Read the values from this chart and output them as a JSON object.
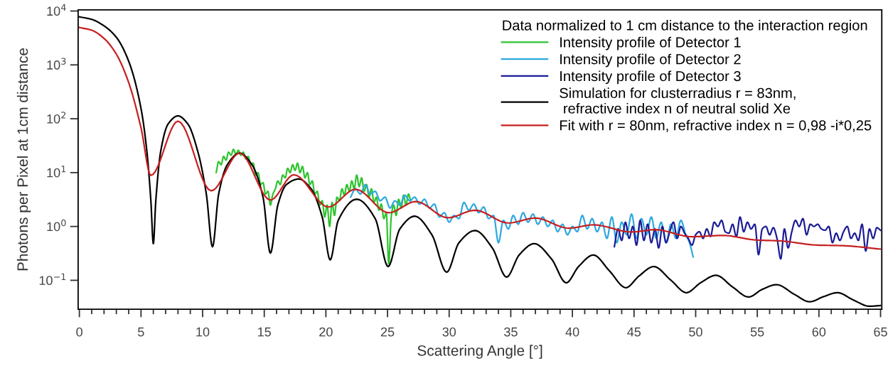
{
  "chart_data": {
    "type": "line",
    "xlabel": "Scattering Angle [°]",
    "ylabel": "Photons per Pixel at 1cm distance",
    "legend_title": "Data normalized to 1 cm distance to the interaction region",
    "log": "y",
    "legend": "top right",
    "grid": false,
    "marker": "none",
    "line_style": "solid",
    "xlim": [
      -0.1,
      65.1
    ],
    "ylim": [
      0.029,
      10500
    ],
    "xticks": [
      0,
      {
        "value": 1,
        "label": null
      },
      {
        "value": 2,
        "label": null
      },
      {
        "value": 3,
        "label": null
      },
      {
        "value": 4,
        "label": null
      },
      5,
      {
        "value": 6,
        "label": null
      },
      {
        "value": 7,
        "label": null
      },
      {
        "value": 8,
        "label": null
      },
      {
        "value": 9,
        "label": null
      },
      10,
      {
        "value": 11,
        "label": null
      },
      {
        "value": 12,
        "label": null
      },
      {
        "value": 13,
        "label": null
      },
      {
        "value": 14,
        "label": null
      },
      15,
      {
        "value": 16,
        "label": null
      },
      {
        "value": 17,
        "label": null
      },
      {
        "value": 18,
        "label": null
      },
      {
        "value": 19,
        "label": null
      },
      20,
      {
        "value": 21,
        "label": null
      },
      {
        "value": 22,
        "label": null
      },
      {
        "value": 23,
        "label": null
      },
      {
        "value": 24,
        "label": null
      },
      25,
      {
        "value": 26,
        "label": null
      },
      {
        "value": 27,
        "label": null
      },
      {
        "value": 28,
        "label": null
      },
      {
        "value": 29,
        "label": null
      },
      30,
      {
        "value": 31,
        "label": null
      },
      {
        "value": 32,
        "label": null
      },
      {
        "value": 33,
        "label": null
      },
      {
        "value": 34,
        "label": null
      },
      35,
      {
        "value": 36,
        "label": null
      },
      {
        "value": 37,
        "label": null
      },
      {
        "value": 38,
        "label": null
      },
      {
        "value": 39,
        "label": null
      },
      40,
      {
        "value": 41,
        "label": null
      },
      {
        "value": 42,
        "label": null
      },
      {
        "value": 43,
        "label": null
      },
      {
        "value": 44,
        "label": null
      },
      45,
      {
        "value": 46,
        "label": null
      },
      {
        "value": 47,
        "label": null
      },
      {
        "value": 48,
        "label": null
      },
      {
        "value": 49,
        "label": null
      },
      50,
      {
        "value": 51,
        "label": null
      },
      {
        "value": 52,
        "label": null
      },
      {
        "value": 53,
        "label": null
      },
      {
        "value": 54,
        "label": null
      },
      55,
      {
        "value": 56,
        "label": null
      },
      {
        "value": 57,
        "label": null
      },
      {
        "value": 58,
        "label": null
      },
      {
        "value": 59,
        "label": null
      },
      60,
      {
        "value": 61,
        "label": null
      },
      {
        "value": 62,
        "label": null
      },
      {
        "value": 63,
        "label": null
      },
      {
        "value": 64,
        "label": null
      },
      65
    ],
    "yticks": [
      {
        "value": 0.1,
        "label": "10$^{−1}$"
      },
      {
        "value": 1,
        "label": "10$^{0}$"
      },
      {
        "value": 10,
        "label": "10$^{1}$"
      },
      {
        "value": 100,
        "label": "10$^{2}$"
      },
      {
        "value": 1000,
        "label": "10$^{3}$"
      },
      {
        "value": 10000,
        "label": "10$^{4}$"
      }
    ],
    "series": [
      {
        "name": "Intensity profile of Detector 1",
        "color": "#2ec42e",
        "x": [
          11.1,
          11.3,
          11.5,
          11.7,
          11.9,
          12.1,
          12.3,
          12.5,
          12.7,
          12.9,
          13.1,
          13.3,
          13.5,
          13.7,
          13.9,
          14.1,
          14.3,
          14.5,
          14.7,
          14.9,
          15.1,
          15.3,
          15.5,
          15.7,
          15.9,
          16.1,
          16.3,
          16.5,
          16.7,
          16.9,
          17.1,
          17.3,
          17.5,
          17.7,
          17.9,
          18.1,
          18.3,
          18.5,
          18.7,
          18.9,
          19.1,
          19.3,
          19.5,
          19.7,
          19.9,
          20.1,
          20.3,
          20.5,
          20.7,
          20.9,
          21.1,
          21.3,
          21.5,
          21.7,
          21.9,
          22.1,
          22.3,
          22.5,
          22.7,
          22.9,
          23.1,
          23.3,
          23.5,
          23.7,
          23.9,
          24.1,
          24.3,
          24.5,
          24.7,
          24.9,
          25.1,
          25.3,
          25.5,
          25.7,
          25.9,
          26.1,
          26.3,
          26.5,
          26.7,
          26.9
        ],
        "values": [
          10,
          16,
          14,
          20,
          17,
          24,
          21,
          27,
          22,
          26,
          21,
          24,
          18,
          20,
          14,
          15,
          9,
          10,
          6,
          6.5,
          4,
          4.5,
          2.5,
          4,
          5,
          7,
          6,
          9,
          8,
          12,
          10,
          14,
          11,
          15,
          10,
          13,
          8,
          10,
          6,
          7,
          4,
          4.5,
          2.5,
          3,
          1.5,
          2.5,
          1.0,
          2.8,
          1.6,
          3.5,
          3,
          5,
          3.8,
          6,
          4.5,
          7,
          5,
          9,
          5.5,
          8,
          4.5,
          6,
          3.5,
          5,
          2.8,
          3.5,
          2,
          2.6,
          1.4,
          1.8,
          0.2,
          1.5,
          2.5,
          1.6,
          3.2,
          2.2,
          3.8,
          2.5,
          4,
          2.8
        ]
      },
      {
        "name": "Intensity profile of Detector 2",
        "color": "#2ea8e0",
        "x": [
          22.0,
          22.4,
          22.8,
          23.2,
          23.6,
          24.0,
          24.4,
          24.8,
          25.2,
          25.6,
          26.0,
          26.4,
          26.8,
          27.2,
          27.6,
          28.0,
          28.4,
          28.8,
          29.2,
          29.6,
          30.0,
          30.4,
          30.8,
          31.2,
          31.6,
          32.0,
          32.4,
          32.8,
          33.2,
          33.6,
          34.0,
          34.4,
          34.8,
          35.2,
          35.6,
          36.0,
          36.4,
          36.8,
          37.2,
          37.6,
          38.0,
          38.4,
          38.8,
          39.2,
          39.6,
          40.0,
          40.4,
          40.8,
          41.2,
          41.6,
          42.0,
          42.4,
          42.8,
          43.2,
          43.6,
          44.0,
          44.4,
          44.8,
          45.2,
          45.6,
          46.0,
          46.4,
          46.8,
          47.2,
          47.6,
          48.0,
          48.4,
          48.8,
          49.2,
          49.5,
          49.8
        ],
        "values": [
          3.5,
          5,
          4,
          6,
          4,
          4.5,
          3,
          3.5,
          2.2,
          3,
          2.5,
          3.8,
          3,
          3.5,
          2.6,
          3.2,
          2.2,
          2.6,
          1.5,
          1.8,
          1.2,
          1.6,
          1.4,
          2.8,
          2,
          2.6,
          1.8,
          2.3,
          1.4,
          1.6,
          0.5,
          1.3,
          0.9,
          1.6,
          1.1,
          1.8,
          1.2,
          1.7,
          1.1,
          1.5,
          1.0,
          1.3,
          0.8,
          1.1,
          0.7,
          1.0,
          0.8,
          1.6,
          0.9,
          1.4,
          0.8,
          1.2,
          0.6,
          1.5,
          0.5,
          1.2,
          0.7,
          1.7,
          0.6,
          1.4,
          0.7,
          1.5,
          0.6,
          1.2,
          0.5,
          1.1,
          0.6,
          1.3,
          0.7,
          0.5,
          0.27
        ]
      },
      {
        "name": "Intensity profile of Detector 3",
        "color": "#1c1c96",
        "x": [
          43.4,
          43.7,
          44.0,
          44.3,
          44.6,
          44.9,
          45.2,
          45.5,
          45.8,
          46.1,
          46.4,
          46.7,
          47.0,
          47.3,
          47.6,
          47.9,
          48.2,
          48.5,
          48.8,
          49.1,
          49.4,
          49.7,
          50.0,
          50.3,
          50.6,
          50.9,
          51.2,
          51.5,
          51.8,
          52.1,
          52.4,
          52.7,
          53.0,
          53.3,
          53.6,
          53.9,
          54.2,
          54.5,
          54.8,
          55.1,
          55.4,
          55.7,
          56.0,
          56.3,
          56.6,
          56.9,
          57.2,
          57.5,
          57.8,
          58.1,
          58.4,
          58.7,
          59.0,
          59.3,
          59.6,
          59.9,
          60.2,
          60.5,
          60.8,
          61.1,
          61.4,
          61.7,
          62.0,
          62.3,
          62.6,
          62.9,
          63.2,
          63.5,
          63.8,
          64.1,
          64.4,
          64.7,
          65.0
        ],
        "values": [
          0.42,
          0.9,
          0.55,
          1.2,
          0.6,
          1.0,
          0.45,
          1.3,
          0.55,
          1.1,
          0.5,
          0.9,
          0.4,
          1.0,
          0.5,
          0.8,
          1.2,
          0.6,
          1.0,
          0.75,
          0.6,
          0.45,
          0.7,
          0.8,
          0.6,
          0.9,
          0.65,
          1.2,
          1.0,
          1.3,
          0.8,
          0.75,
          1.1,
          0.65,
          1.5,
          0.8,
          1.2,
          0.9,
          1.1,
          0.3,
          0.9,
          1.0,
          0.7,
          0.95,
          0.6,
          0.25,
          0.9,
          0.4,
          0.8,
          1.3,
          1.0,
          1.4,
          0.7,
          1.1,
          1.0,
          1.1,
          0.9,
          0.85,
          1.0,
          0.5,
          0.75,
          0.55,
          0.8,
          1.0,
          0.6,
          0.75,
          0.55,
          1.1,
          0.35,
          0.9,
          0.6,
          0.95,
          0.85
        ]
      },
      {
        "name": "Simulation for clusterradius r = 83nm,\n refractive index n of neutral solid Xe",
        "color": "#000000",
        "x": [
          0,
          1,
          2,
          3,
          4,
          5,
          5.5,
          5.8,
          6.0,
          6.2,
          6.6,
          7.2,
          8.0,
          8.8,
          9.6,
          10.3,
          10.8,
          11.3,
          12.0,
          13.0,
          14.0,
          14.9,
          15.5,
          16.1,
          16.8,
          17.8,
          18.8,
          19.7,
          20.35,
          21.0,
          22.5,
          24.0,
          25.05,
          26.0,
          27.2,
          28.6,
          29.8,
          30.8,
          32.1,
          33.5,
          34.66,
          35.7,
          36.9,
          38.3,
          39.5,
          40.5,
          41.7,
          43.0,
          44.34,
          45.4,
          46.6,
          48.0,
          49.25,
          50.4,
          51.65,
          53.0,
          54.3,
          55.4,
          56.56,
          58.0,
          59.25,
          60.4,
          61.5,
          62.8,
          64.1,
          65
        ],
        "values": [
          7800,
          7000,
          5300,
          3250,
          1170,
          155,
          22,
          3,
          0.48,
          3,
          25,
          80,
          113,
          80,
          25,
          4,
          0.42,
          4,
          14,
          23,
          14,
          3.5,
          0.32,
          2.5,
          6,
          7.6,
          5,
          1.5,
          0.24,
          1.3,
          3.2,
          1.4,
          0.18,
          0.9,
          1.55,
          0.7,
          0.142,
          0.5,
          0.84,
          0.4,
          0.115,
          0.3,
          0.48,
          0.25,
          0.09,
          0.18,
          0.295,
          0.15,
          0.073,
          0.12,
          0.18,
          0.1,
          0.059,
          0.09,
          0.124,
          0.075,
          0.049,
          0.068,
          0.083,
          0.055,
          0.04,
          0.05,
          0.059,
          0.043,
          0.033,
          0.034
        ]
      },
      {
        "name": "Fit with r = 80nm, refractive index n = 0,98 -i*0,25",
        "color": "#c62020",
        "x": [
          0,
          1,
          2,
          3,
          4,
          5,
          5.8,
          8.0,
          10.7,
          13.0,
          15.5,
          17.4,
          20.2,
          22.4,
          25.1,
          27.3,
          29.9,
          32.1,
          34.8,
          37.0,
          39.7,
          41.7,
          44.8,
          46.7,
          49.7,
          52.2,
          54.9,
          56.8,
          59.9,
          61.9,
          65
        ],
        "values": [
          4950,
          4400,
          3100,
          1580,
          470,
          68,
          8.9,
          90,
          4.6,
          23,
          3.1,
          9.1,
          2.3,
          4.9,
          1.8,
          2.9,
          1.45,
          2.0,
          1.16,
          1.43,
          0.93,
          1.07,
          0.79,
          0.87,
          0.645,
          0.68,
          0.56,
          0.54,
          0.45,
          0.44,
          0.38
        ]
      }
    ]
  }
}
